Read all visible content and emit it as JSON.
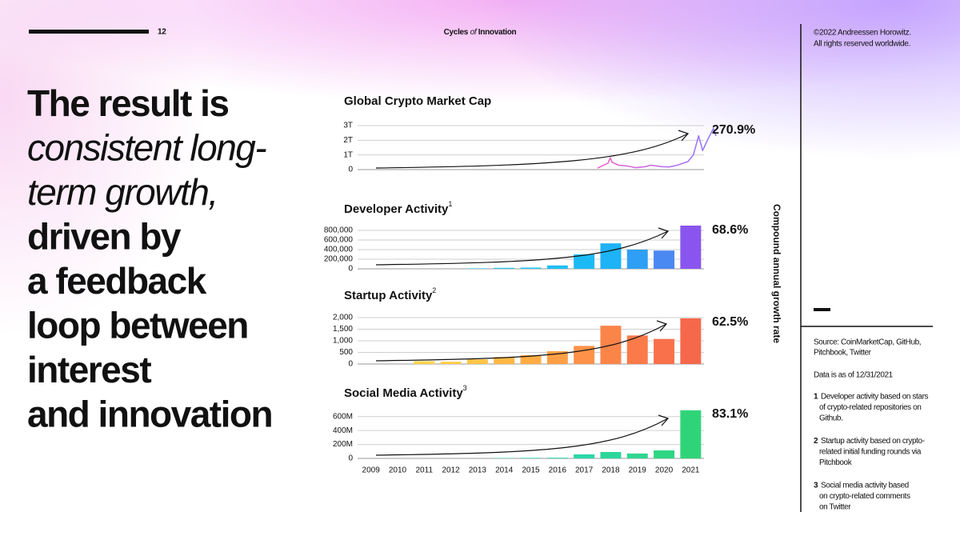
{
  "header": {
    "page_number": "12",
    "title": [
      "Cycles",
      "of",
      "Innovation"
    ],
    "copyright": [
      "©2022 Andreessen Horowitz.",
      "All rights reserved worldwide."
    ]
  },
  "headline": [
    {
      "text": "The result is",
      "style": "bold"
    },
    {
      "text": "consistent long-",
      "style": "italic"
    },
    {
      "text": "term growth,",
      "style": "italic"
    },
    {
      "text": "driven by",
      "style": "bold"
    },
    {
      "text": "a feedback",
      "style": "bold"
    },
    {
      "text": "loop between",
      "style": "bold"
    },
    {
      "text": "interest",
      "style": "bold"
    },
    {
      "text": "and innovation",
      "style": "bold"
    }
  ],
  "y_axis_title": "Compound annual growth rate",
  "chart_data": [
    {
      "type": "line",
      "title": "Global Crypto Market Cap",
      "x": [
        2017.5,
        2017.9,
        2017.98,
        2018.05,
        2018.3,
        2018.6,
        2018.95,
        2019.3,
        2019.5,
        2019.9,
        2020.2,
        2020.5,
        2020.9,
        2021.1,
        2021.3,
        2021.45,
        2021.6,
        2021.85,
        2021.95
      ],
      "values": [
        0.1,
        0.45,
        0.8,
        0.5,
        0.3,
        0.25,
        0.13,
        0.2,
        0.3,
        0.2,
        0.18,
        0.3,
        0.55,
        1.0,
        2.3,
        1.3,
        1.9,
        2.8,
        2.3
      ],
      "colors": [
        "#f25fc8",
        "#8f7dff"
      ],
      "xlim": [
        2008.5,
        2021.5
      ],
      "ylim": [
        0,
        3
      ],
      "yticks": [
        0,
        {
          "value": 1,
          "label": "1T"
        },
        {
          "value": 2,
          "label": "2T"
        },
        {
          "value": 3,
          "label": "3T"
        }
      ],
      "grid": true,
      "annotation": "270.9%"
    },
    {
      "type": "bar",
      "title": "Developer Activity",
      "title_note": "1",
      "x": [
        2009,
        2010,
        2011,
        2012,
        2013,
        2014,
        2015,
        2016,
        2017,
        2018,
        2019,
        2020,
        2021
      ],
      "values": [
        0,
        0,
        0,
        0,
        10000,
        20000,
        25000,
        70000,
        300000,
        530000,
        400000,
        380000,
        900000
      ],
      "colors": [
        "#22ccef",
        "#22ccef",
        "#22ccef",
        "#22ccef",
        "#22ccef",
        "#22c8f0",
        "#22c4f0",
        "#1fbff2",
        "#1cbaf4",
        "#1eb2f6",
        "#2f9ff5",
        "#4a88f2",
        "#8a55ee"
      ],
      "xlim": [
        2008.5,
        2021.5
      ],
      "ylim": [
        0,
        900000
      ],
      "yticks": [
        0,
        {
          "value": 200000,
          "label": "200,000"
        },
        {
          "value": 400000,
          "label": "400,000"
        },
        {
          "value": 600000,
          "label": "600,000"
        },
        {
          "value": 800000,
          "label": "800,000"
        }
      ],
      "grid": true,
      "annotation": "68.6%"
    },
    {
      "type": "bar",
      "title": "Startup Activity",
      "title_note": "2",
      "x": [
        2009,
        2010,
        2011,
        2012,
        2013,
        2014,
        2015,
        2016,
        2017,
        2018,
        2019,
        2020,
        2021
      ],
      "values": [
        0,
        0,
        120,
        100,
        200,
        300,
        380,
        550,
        780,
        1650,
        1230,
        1080,
        1970
      ],
      "colors": [
        "#ffd84a",
        "#ffd84a",
        "#ffd44a",
        "#ffcc48",
        "#ffc446",
        "#ffb845",
        "#ffac45",
        "#ff9f46",
        "#fd9248",
        "#fb8449",
        "#fa7a4a",
        "#f8714b",
        "#f6684c"
      ],
      "xlim": [
        2008.5,
        2021.5
      ],
      "ylim": [
        0,
        2000
      ],
      "yticks": [
        0,
        500,
        {
          "value": 1000,
          "label": "1,000"
        },
        {
          "value": 1500,
          "label": "1,500"
        },
        {
          "value": 2000,
          "label": "2,000"
        }
      ],
      "grid": true,
      "annotation": "62.5%"
    },
    {
      "type": "bar",
      "title": "Social Media Activity",
      "title_note": "3",
      "x": [
        2009,
        2010,
        2011,
        2012,
        2013,
        2014,
        2015,
        2016,
        2017,
        2018,
        2019,
        2020,
        2021
      ],
      "values": [
        0,
        0,
        0,
        0,
        0,
        5,
        8,
        10,
        58,
        92,
        70,
        115,
        690
      ],
      "colors": [
        "#2ad6c8",
        "#2ad6c8",
        "#2ad6c8",
        "#2ad6c8",
        "#2ad6c8",
        "#2ad6c4",
        "#2ad6bc",
        "#2ad6b2",
        "#2bd6a6",
        "#2cd69a",
        "#2ed68e",
        "#2fd683",
        "#30d478"
      ],
      "xlim": [
        2008.5,
        2021.5
      ],
      "ylim": [
        0,
        700
      ],
      "xticks": [
        2009,
        2010,
        2011,
        2012,
        2013,
        2014,
        2015,
        2016,
        2017,
        2018,
        2019,
        2020,
        2021
      ],
      "yticks": [
        0,
        {
          "value": 200,
          "label": "200M"
        },
        {
          "value": 400,
          "label": "400M"
        },
        {
          "value": 600,
          "label": "600M"
        }
      ],
      "grid": true,
      "annotation": "83.1%"
    }
  ],
  "notes": {
    "source": [
      "Source: CoinMarketCap, GitHub,",
      "Pitchbook, Twitter"
    ],
    "as_of": "Data is as of 12/31/2021",
    "footnotes": [
      {
        "number": "1",
        "lines": [
          "Developer activity based on stars",
          "of crypto-related repositories on",
          "Github."
        ]
      },
      {
        "number": "2",
        "lines": [
          "Startup activity based on crypto-",
          "related initial funding rounds via",
          "Pitchbook"
        ]
      },
      {
        "number": "3",
        "lines": [
          "Social media activity based",
          "on crypto-related comments",
          "on Twitter"
        ]
      }
    ]
  }
}
